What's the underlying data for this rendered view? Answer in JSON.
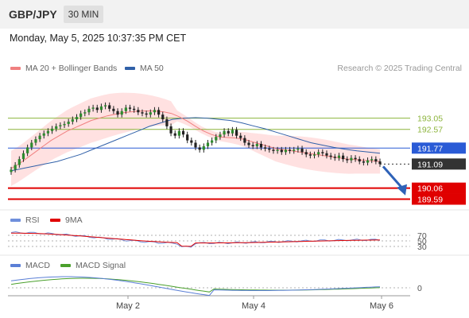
{
  "header": {
    "symbol": "GBP/JPY",
    "timeframe": "30 MIN"
  },
  "datetime": "Monday, May 5, 2025 10:37:35 PM CET",
  "credit": "Research © 2025 Trading Central",
  "legends": {
    "ma20": "MA 20 + Bollinger Bands",
    "ma50": "MA 50",
    "rsi": "RSI",
    "rsi_ma": "9MA",
    "macd": "MACD",
    "macd_signal": "MACD Signal"
  },
  "colors": {
    "ma20": "#f08080",
    "ma50": "#3060a8",
    "rsi": "#6f8fdc",
    "rsi_ma": "#e00000",
    "macd": "#5b7fd6",
    "macd_signal": "#4aa02c",
    "resistance": "#8cb43c",
    "support": "#e00000",
    "pivot": "#2a5bd6",
    "current": "#333333",
    "bollinger": "#ffc8c8"
  },
  "chart_data": {
    "type": "candlestick",
    "x_tick_labels": [
      "May 2",
      "May 4",
      "May 6"
    ],
    "y_range": [
      189.2,
      194.7
    ],
    "levels": [
      {
        "label": "193.05",
        "value": 193.05,
        "kind": "resistance"
      },
      {
        "label": "192.57",
        "value": 192.57,
        "kind": "resistance"
      },
      {
        "label": "191.77",
        "value": 191.77,
        "kind": "pivot"
      },
      {
        "label": "191.09",
        "value": 191.09,
        "kind": "current"
      },
      {
        "label": "190.06",
        "value": 190.06,
        "kind": "support"
      },
      {
        "label": "189.59",
        "value": 189.59,
        "kind": "support"
      }
    ],
    "close_series": [
      190.85,
      191.05,
      191.3,
      191.55,
      191.8,
      192.0,
      192.15,
      192.3,
      192.4,
      192.5,
      192.6,
      192.7,
      192.75,
      192.8,
      192.9,
      193.0,
      193.1,
      193.25,
      193.3,
      193.45,
      193.5,
      193.4,
      193.55,
      193.6,
      193.45,
      193.35,
      193.2,
      193.35,
      193.5,
      193.45,
      193.4,
      193.3,
      193.25,
      193.2,
      193.3,
      193.4,
      193.2,
      193.0,
      192.7,
      192.4,
      192.3,
      192.5,
      192.35,
      192.1,
      192.0,
      191.8,
      191.7,
      191.85,
      192.0,
      192.1,
      192.25,
      192.35,
      192.5,
      192.4,
      192.55,
      192.3,
      192.2,
      192.0,
      191.9,
      191.85,
      191.95,
      191.8,
      191.75,
      191.7,
      191.65,
      191.7,
      191.6,
      191.7,
      191.65,
      191.7,
      191.75,
      191.6,
      191.5,
      191.45,
      191.5,
      191.6,
      191.55,
      191.45,
      191.4,
      191.35,
      191.45,
      191.3,
      191.25,
      191.35,
      191.3,
      191.2,
      191.15,
      191.25,
      191.3,
      191.2,
      191.09
    ],
    "ma20_series": [
      190.9,
      191.1,
      191.35,
      191.6,
      191.85,
      192.1,
      192.3,
      192.5,
      192.65,
      192.8,
      192.95,
      193.05,
      193.15,
      193.22,
      193.28,
      193.32,
      193.35,
      193.36,
      193.35,
      193.32,
      193.25,
      193.1,
      192.92,
      192.7,
      192.5,
      192.35,
      192.25,
      192.22,
      192.2,
      192.15,
      192.05,
      191.95,
      191.85,
      191.75,
      191.7,
      191.65,
      191.6,
      191.55,
      191.5,
      191.45,
      191.4,
      191.35,
      191.3,
      191.28,
      191.25,
      191.22,
      191.2
    ],
    "ma50_series": [
      190.8,
      190.9,
      191.0,
      191.1,
      191.2,
      191.35,
      191.5,
      191.7,
      191.9,
      192.1,
      192.3,
      192.5,
      192.7,
      192.85,
      193.0,
      193.05,
      193.07,
      193.05,
      193.0,
      192.95,
      192.85,
      192.72,
      192.6,
      192.45,
      192.3,
      192.15,
      192.0,
      191.9,
      191.8,
      191.72,
      191.65,
      191.6,
      191.55
    ],
    "rsi_levels": [
      "70",
      "50",
      "30"
    ],
    "macd_levels": [
      "0"
    ]
  }
}
